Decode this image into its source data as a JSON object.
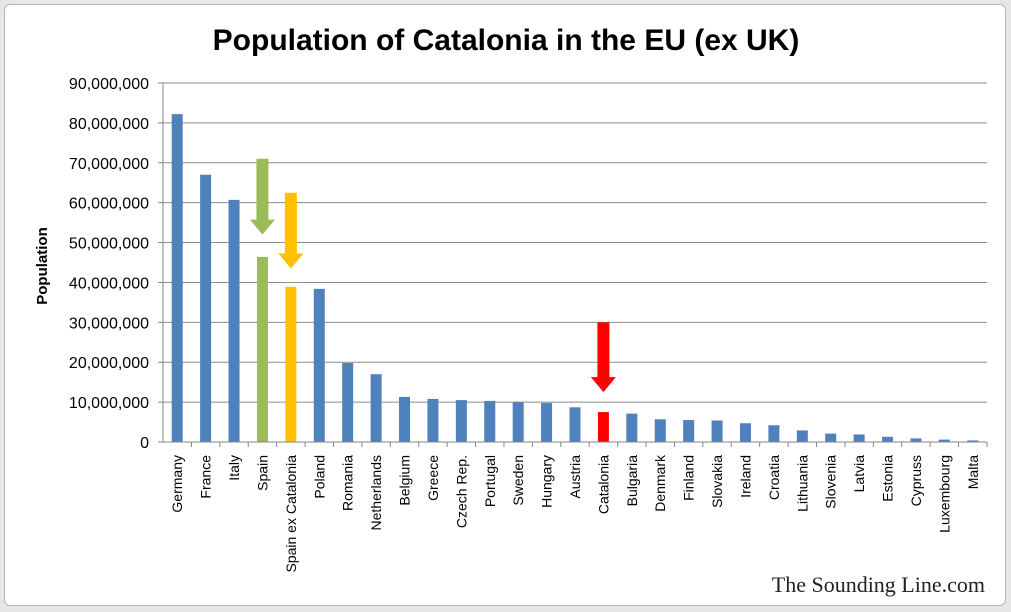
{
  "chart_data": {
    "type": "bar",
    "title": "Population of Catalonia in the EU (ex UK)",
    "xlabel": "",
    "ylabel": "Population",
    "ylim": [
      0,
      90000000
    ],
    "yticks": [
      0,
      10000000,
      20000000,
      30000000,
      40000000,
      50000000,
      60000000,
      70000000,
      80000000,
      90000000
    ],
    "ytick_labels": [
      "0",
      "10,000,000",
      "20,000,000",
      "30,000,000",
      "40,000,000",
      "50,000,000",
      "60,000,000",
      "70,000,000",
      "80,000,000",
      "90,000,000"
    ],
    "grid": true,
    "legend": "none",
    "categories": [
      "Germany",
      "France",
      "Italy",
      "Spain",
      "Spain ex Catalonia",
      "Poland",
      "Romania",
      "Netherlands",
      "Belgium",
      "Greece",
      "Czech Rep.",
      "Portugal",
      "Sweden",
      "Hungary",
      "Austria",
      "Catalonia",
      "Bulgaria",
      "Denmark",
      "Finland",
      "Slovakia",
      "Ireland",
      "Croatia",
      "Lithuania",
      "Slovenia",
      "Latvia",
      "Estonia",
      "Cypruss",
      "Luxembourg",
      "Malta"
    ],
    "values": [
      82200000,
      67000000,
      60700000,
      46400000,
      38900000,
      38400000,
      19800000,
      17000000,
      11300000,
      10800000,
      10500000,
      10300000,
      9900000,
      9800000,
      8700000,
      7500000,
      7100000,
      5700000,
      5500000,
      5400000,
      4700000,
      4200000,
      2900000,
      2100000,
      1900000,
      1300000,
      900000,
      600000,
      400000
    ],
    "colors": {
      "default": "#4f81bd",
      "Spain": "#9bbb59",
      "Spain ex Catalonia": "#ffc000",
      "Catalonia": "#ff0000",
      "grid": "#8c8c8c",
      "axis": "#868686"
    },
    "annotations": [
      {
        "type": "arrow",
        "category": "Spain",
        "color": "#9bbb59",
        "from_value": 71000000,
        "to_value": 52000000
      },
      {
        "type": "arrow",
        "category": "Spain ex Catalonia",
        "color": "#ffc000",
        "from_value": 62500000,
        "to_value": 43500000
      },
      {
        "type": "arrow",
        "category": "Catalonia",
        "color": "#ff0000",
        "from_value": 30000000,
        "to_value": 12500000
      }
    ]
  },
  "watermark": "The Sounding Line.com"
}
